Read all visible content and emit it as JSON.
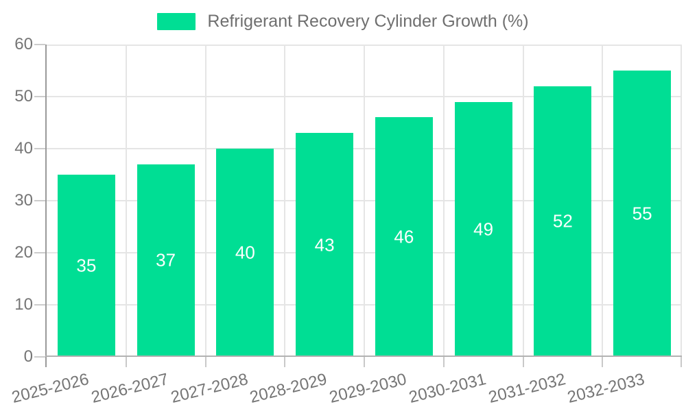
{
  "legend": {
    "label": "Refrigerant Recovery Cylinder Growth (%)"
  },
  "colors": {
    "bar": "#00de94",
    "axis_text": "#757575",
    "grid": "#e5e5e5"
  },
  "chart_data": {
    "type": "bar",
    "categories": [
      "2025-2026",
      "2026-2027",
      "2027-2028",
      "2028-2029",
      "2029-2030",
      "2030-2031",
      "2031-2032",
      "2032-2033"
    ],
    "values": [
      35,
      37,
      40,
      43,
      46,
      49,
      52,
      55
    ],
    "title": "Refrigerant Recovery Cylinder Growth (%)",
    "xlabel": "",
    "ylabel": "",
    "ylim": [
      0,
      60
    ],
    "yticks": [
      0,
      10,
      20,
      30,
      40,
      50,
      60
    ],
    "grid": true,
    "legend_position": "top",
    "bar_labels": "inside-center",
    "bar_color": "#00de94",
    "x_tick_label_rotation_deg": -14
  }
}
